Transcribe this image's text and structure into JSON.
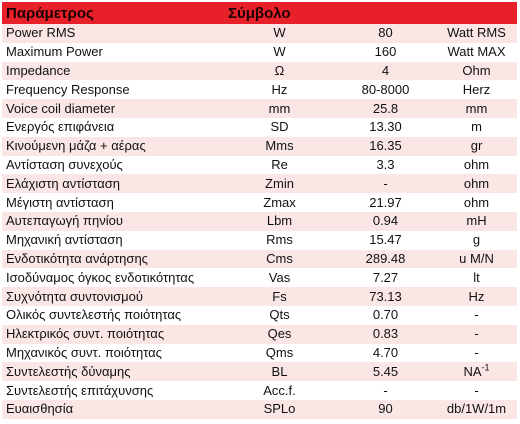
{
  "header": {
    "parameter_label": "Παράμετρος",
    "symbol_label": "Σύμβολο"
  },
  "rows": [
    {
      "name": "Power RMS",
      "symbol": "W",
      "value": "80",
      "unit": "Watt RMS"
    },
    {
      "name": "Maximum Power",
      "symbol": "W",
      "value": "160",
      "unit": "Watt MAX"
    },
    {
      "name": "Impedance",
      "symbol": "Ω",
      "value": "4",
      "unit": "Ohm"
    },
    {
      "name": "Frequency Response",
      "symbol": "Hz",
      "value": "80-8000",
      "unit": "Herz"
    },
    {
      "name": "Voice coil diameter",
      "symbol": "mm",
      "value": "25.8",
      "unit": "mm"
    },
    {
      "name": "Ενεργός επιφάνεια",
      "symbol": "SD",
      "value": "13.30",
      "unit": "m"
    },
    {
      "name": "Κινούμενη μάζα + αέρας",
      "symbol": "Mms",
      "value": "16.35",
      "unit": "gr"
    },
    {
      "name": "Αντίσταση συνεχούς",
      "symbol": "Re",
      "value": "3.3",
      "unit": "ohm"
    },
    {
      "name": "Ελάχιστη αντίσταση",
      "symbol": "Zmin",
      "value": "-",
      "unit": "ohm"
    },
    {
      "name": "Μέγιστη αντίσταση",
      "symbol": "Zmax",
      "value": "21.97",
      "unit": "ohm"
    },
    {
      "name": "Αυτεπαγωγή πηνίου",
      "symbol": "Lbm",
      "value": "0.94",
      "unit": "mH"
    },
    {
      "name": "Μηχανική αντίσταση",
      "symbol": "Rms",
      "value": "15.47",
      "unit": "g"
    },
    {
      "name": "Ενδοτικότητα ανάρτησης",
      "symbol": "Cms",
      "value": "289.48",
      "unit": "u M/N"
    },
    {
      "name": "Ισοδύναμος όγκος ενδοτικότητας",
      "symbol": "Vas",
      "value": "7.27",
      "unit": "lt"
    },
    {
      "name": "Συχνότητα συντονισμού",
      "symbol": "Fs",
      "value": "73.13",
      "unit": "Hz"
    },
    {
      "name": "Ολικός συντελεστής ποιότητας",
      "symbol": "Qts",
      "value": "0.70",
      "unit": "-"
    },
    {
      "name": "Ηλεκτρικός συντ. ποιότητας",
      "symbol": "Qes",
      "value": "0.83",
      "unit": "-"
    },
    {
      "name": "Μηχανικός συντ. ποιότητας",
      "symbol": "Qms",
      "value": "4.70",
      "unit": "-"
    },
    {
      "name": "Συντελεστής δύναμης",
      "symbol": "BL",
      "value": "5.45",
      "unit": "NA",
      "unit_sup": "-1"
    },
    {
      "name": "Συντελεστής επιτάχυνσης",
      "symbol": "Acc.f.",
      "value": "-",
      "unit": "-"
    },
    {
      "name": "Ευαισθησία",
      "symbol": "SPLo",
      "value": "90",
      "unit": "db/1W/1m"
    }
  ]
}
